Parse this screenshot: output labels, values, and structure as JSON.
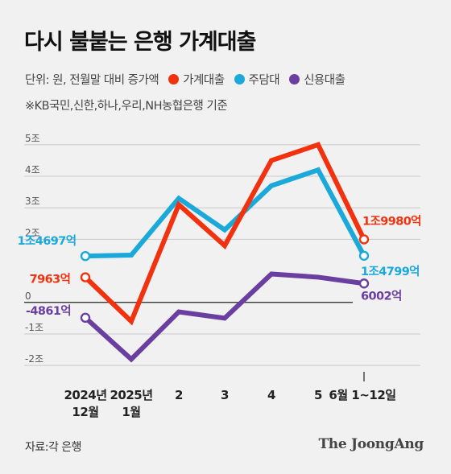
{
  "header": {
    "title": "다시 불붙는 은행 가계대출",
    "unit": "단위: 원, 전월말 대비 증가액",
    "note": "※KB국민,신한,하나,우리,NH농협은행 기준"
  },
  "legend": [
    {
      "label": "가계대출",
      "color": "#f2320f"
    },
    {
      "label": "주담대",
      "color": "#1aa9d9"
    },
    {
      "label": "신용대출",
      "color": "#6a3fa0"
    }
  ],
  "footer": {
    "source": "자료:각 은행",
    "brand": "The JoongAng"
  },
  "chart_data": {
    "type": "line",
    "title": "다시 불붙는 은행 가계대출",
    "categories": [
      "2024년 12월",
      "2025년 1월",
      "2",
      "3",
      "4",
      "5",
      "6월 1~12일"
    ],
    "x_tick_lines": [
      [
        "2024년",
        "12월"
      ],
      [
        "2025년",
        "1월"
      ],
      [
        "2"
      ],
      [
        "3"
      ],
      [
        "4"
      ],
      [
        "5"
      ],
      [
        "6월 1~12일"
      ]
    ],
    "y_ticks": [
      5,
      4,
      3,
      2,
      0,
      -1,
      -2
    ],
    "y_tick_labels": [
      "5조",
      "4조",
      "3조",
      "2조",
      "0",
      "-1조",
      "-2조"
    ],
    "ylim": [
      -2.2,
      5.2
    ],
    "grid": true,
    "series": [
      {
        "name": "가계대출",
        "color": "#f2320f",
        "values": [
          0.7963,
          -0.6,
          3.1,
          1.8,
          4.5,
          5.0,
          1.998
        ],
        "start_label": "7963억",
        "end_label": "1조9980억"
      },
      {
        "name": "주담대",
        "color": "#1aa9d9",
        "values": [
          1.4697,
          1.5,
          3.3,
          2.3,
          3.7,
          4.2,
          1.4799
        ],
        "start_label": "1조4697억",
        "end_label": "1조4799억"
      },
      {
        "name": "신용대출",
        "color": "#6a3fa0",
        "values": [
          -0.4861,
          -1.8,
          -0.3,
          -0.5,
          0.9,
          0.8,
          0.6002
        ],
        "start_label": "-4861억",
        "end_label": "6002억"
      }
    ]
  }
}
